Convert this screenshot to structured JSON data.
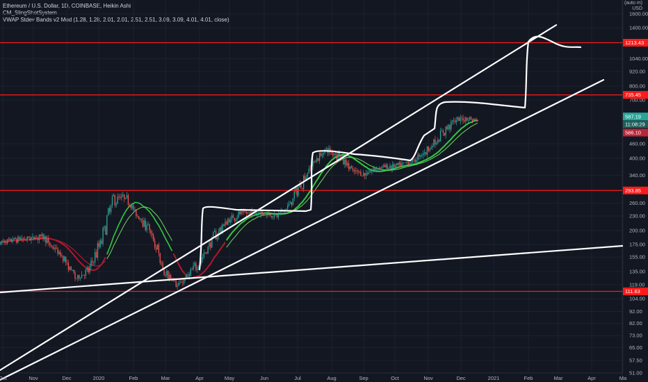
{
  "legend": {
    "title": "Ethereum / U.S. Dollar, 1D, COINBASE, Heikin Ashi",
    "indicator1": "CM_SlingShotSystem",
    "indicator2": "VWAP Stdev Bands v2 Mod (1.28, 1.28, 2.01, 2.01, 2.51, 2.51, 3.09, 3.09, 4.01, 4.01, close)"
  },
  "currency": {
    "top": "(auto m)",
    "unit": "USD"
  },
  "colors": {
    "background": "#131722",
    "candle_up": "#26a69a",
    "candle_down": "#ef5350",
    "level_line": "#ff1a1a",
    "drawing": "#ffffff",
    "ma_red": "#b2182b",
    "ma_green": "#2ecc40",
    "ma_lightgreen": "#6fdc5a"
  },
  "chart_data": {
    "type": "candlestick",
    "symbol": "ETHUSD",
    "interval": "1D",
    "y_scale": "log",
    "y_ticks": [
      "1600.00",
      "1400.00",
      "1040.00",
      "920.00",
      "800.00",
      "700.00",
      "460.00",
      "400.00",
      "340.00",
      "260.00",
      "230.00",
      "200.00",
      "175.00",
      "155.00",
      "135.00",
      "119.00",
      "104.00",
      "92.00",
      "82.00",
      "73.00",
      "65.00",
      "57.50",
      "51.00"
    ],
    "x_ticks": [
      "Oct",
      "Nov",
      "Dec",
      "2020",
      "Feb",
      "Mar",
      "Apr",
      "May",
      "Jun",
      "Jul",
      "Aug",
      "Sep",
      "Oct",
      "Nov",
      "Dec",
      "2021",
      "Feb",
      "Mar",
      "Apr",
      "Ma"
    ],
    "horizontal_levels": [
      "1213.43",
      "735.45",
      "293.85",
      "111.63"
    ],
    "price_tags": [
      {
        "label": "587.19",
        "type": "last"
      },
      {
        "label": "11:08:29",
        "type": "timer"
      },
      {
        "label": "586.10",
        "type": "vwap"
      }
    ],
    "price_path": [
      [
        175,
        182
      ],
      [
        190,
        180
      ],
      [
        185,
        185
      ],
      [
        195,
        184
      ],
      [
        180,
        172
      ],
      [
        158,
        150
      ],
      [
        128,
        125
      ],
      [
        132,
        140
      ],
      [
        165,
        190
      ],
      [
        250,
        290
      ],
      [
        265,
        280
      ],
      [
        235,
        220
      ],
      [
        205,
        190
      ],
      [
        150,
        120
      ],
      [
        118,
        115
      ],
      [
        125,
        135
      ],
      [
        145,
        160
      ],
      [
        175,
        200
      ],
      [
        210,
        225
      ],
      [
        230,
        240
      ],
      [
        237,
        238
      ],
      [
        240,
        232
      ],
      [
        228,
        232
      ],
      [
        250,
        260
      ],
      [
        300,
        340
      ],
      [
        380,
        400
      ],
      [
        430,
        445
      ],
      [
        420,
        380
      ],
      [
        360,
        350
      ],
      [
        340,
        345
      ],
      [
        360,
        370
      ],
      [
        375,
        365
      ],
      [
        370,
        380
      ],
      [
        385,
        400
      ],
      [
        420,
        450
      ],
      [
        470,
        520
      ],
      [
        545,
        590
      ],
      [
        600,
        575
      ],
      [
        565,
        587
      ]
    ]
  }
}
